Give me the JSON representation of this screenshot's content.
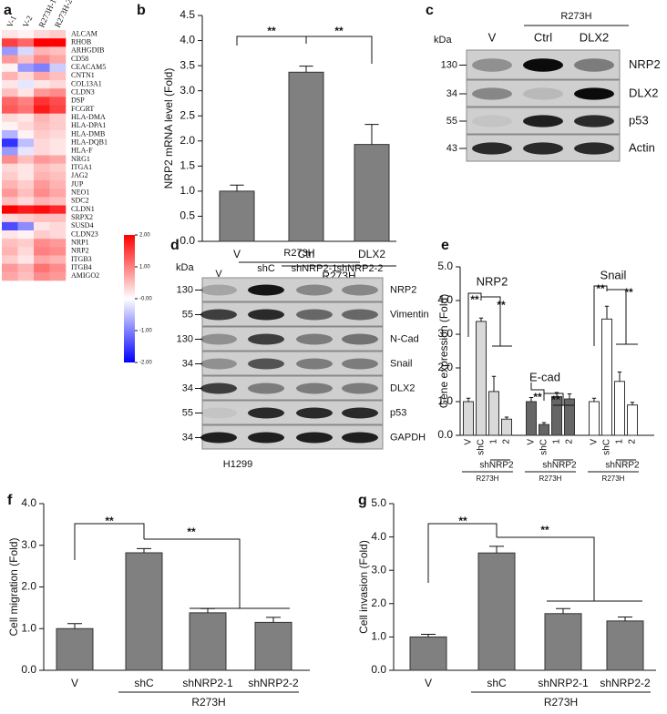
{
  "panel_labels": [
    "a",
    "b",
    "c",
    "d",
    "e",
    "f",
    "g"
  ],
  "chart_data": [
    {
      "type": "heatmap",
      "columns": [
        "V-1",
        "V-2",
        "R273H-1",
        "R273H-2"
      ],
      "rows": [
        "ALCAM",
        "RHOB",
        "ARHGDIB",
        "CD58",
        "CEACAM5",
        "CNTN1",
        "COL13A1",
        "CLDN3",
        "DSP",
        "FCGRT",
        "HLA-DMA",
        "HLA-DPA1",
        "HLA-DMB",
        "HLA-DQB1",
        "HLA-F",
        "NRG1",
        "ITGA1",
        "JAG2",
        "JUP",
        "NEO1",
        "SDC2",
        "CLDN1",
        "SRPX2",
        "SUSD4",
        "CLDN23",
        "NRP1",
        "NRP2",
        "ITGB3",
        "ITGB4",
        "AMIGO2"
      ],
      "values": [
        [
          0.2,
          0.1,
          0.3,
          0.4
        ],
        [
          1.5,
          1.2,
          2,
          2
        ],
        [
          -0.8,
          -0.3,
          0.6,
          0.5
        ],
        [
          0.8,
          0.5,
          0.9,
          0.7
        ],
        [
          0.1,
          -0.8,
          -1,
          -0.4
        ],
        [
          0.6,
          0.3,
          0.7,
          0.5
        ],
        [
          0.2,
          -0.2,
          0.2,
          0.3
        ],
        [
          0.5,
          0.2,
          0.8,
          0.9
        ],
        [
          1.2,
          1,
          1.6,
          1.4
        ],
        [
          1.3,
          1.1,
          1.8,
          1.5
        ],
        [
          0.3,
          0.2,
          0.6,
          0.4
        ],
        [
          0.1,
          0.3,
          0.5,
          0.4
        ],
        [
          -0.6,
          0.1,
          0.4,
          0.3
        ],
        [
          -1.6,
          -0.5,
          0.3,
          0.2
        ],
        [
          -0.8,
          -0.2,
          0.3,
          0.2
        ],
        [
          0.9,
          0.5,
          0.8,
          0.7
        ],
        [
          0.3,
          0.2,
          0.5,
          0.4
        ],
        [
          0.4,
          0.2,
          0.6,
          0.5
        ],
        [
          0.6,
          0.4,
          0.8,
          0.6
        ],
        [
          0.8,
          0.5,
          0.9,
          0.7
        ],
        [
          0.5,
          0.3,
          0.6,
          0.5
        ],
        [
          2,
          1.8,
          1.9,
          1.7
        ],
        [
          0.3,
          0.4,
          0.5,
          0.5
        ],
        [
          -1.4,
          -0.9,
          0.2,
          0.3
        ],
        [
          0.2,
          0.1,
          0.4,
          0.3
        ],
        [
          0.5,
          0.4,
          0.9,
          0.8
        ],
        [
          0.6,
          0.3,
          1,
          0.9
        ],
        [
          0.4,
          0.2,
          0.7,
          0.6
        ],
        [
          0.8,
          0.6,
          1.1,
          0.9
        ],
        [
          0.7,
          0.5,
          0.9,
          0.8
        ]
      ],
      "zlim": [
        -2,
        2
      ],
      "colorbar_ticks": [
        {
          "value": 2,
          "label": "2.00"
        },
        {
          "value": 1,
          "label": "1.00"
        },
        {
          "value": 0,
          "label": "-0.00"
        },
        {
          "value": -1,
          "label": "-1.00"
        },
        {
          "value": -2,
          "label": "-2.00"
        }
      ]
    },
    {
      "type": "bar",
      "ylabel": "NRP2 mRNA level (Fold)",
      "categories": [
        "V",
        "Ctrl",
        "DLX2"
      ],
      "values": [
        1.0,
        3.37,
        1.93
      ],
      "errors": [
        0.12,
        0.12,
        0.4
      ],
      "color": "#808080",
      "group_label": "R273H",
      "annotations": [
        "**",
        "**"
      ],
      "ylim": [
        0,
        4.5
      ],
      "yticks": [
        {
          "value": 0,
          "label": "0.0"
        },
        {
          "value": 0.5,
          "label": "0.5"
        },
        {
          "value": 1,
          "label": "1.0"
        },
        {
          "value": 1.5,
          "label": "1.5"
        },
        {
          "value": 2,
          "label": "2.0"
        },
        {
          "value": 2.5,
          "label": "2.5"
        },
        {
          "value": 3,
          "label": "3.0"
        },
        {
          "value": 3.5,
          "label": "3.5"
        },
        {
          "value": 4,
          "label": "4.0"
        },
        {
          "value": 4.5,
          "label": "4.5"
        }
      ]
    },
    {
      "type": "grouped_bar",
      "ylabel": "Gene expression (Fold)",
      "ylim": [
        0,
        5
      ],
      "yticks": [
        {
          "value": 0,
          "label": "0.0"
        },
        {
          "value": 1,
          "label": "1.0"
        },
        {
          "value": 2,
          "label": "2.0"
        },
        {
          "value": 3,
          "label": "3.0"
        },
        {
          "value": 4,
          "label": "4.0"
        },
        {
          "value": 5,
          "label": "5.0"
        }
      ],
      "groups": [
        {
          "name": "NRP2",
          "color": "#d9d9d9",
          "categories": [
            "V",
            "shC",
            "1",
            "2"
          ],
          "values": [
            1.0,
            3.38,
            1.3,
            0.48
          ],
          "errors": [
            0.1,
            0.1,
            0.45,
            0.06
          ],
          "sub_label": "shNRP2",
          "group_label": "R273H",
          "annotations": [
            "**",
            "**"
          ]
        },
        {
          "name": "E-cad",
          "color": "#666666",
          "categories": [
            "V",
            "shC",
            "1",
            "2"
          ],
          "values": [
            1.0,
            0.32,
            1.15,
            1.08
          ],
          "errors": [
            0.12,
            0.06,
            0.12,
            0.15
          ],
          "sub_label": "shNRP2",
          "group_label": "R273H",
          "annotations": [
            "**",
            "**"
          ]
        },
        {
          "name": "Snail",
          "color": "#ffffff",
          "categories": [
            "V",
            "shC",
            "1",
            "2"
          ],
          "values": [
            1.0,
            3.45,
            1.6,
            0.9
          ],
          "errors": [
            0.1,
            0.38,
            0.28,
            0.08
          ],
          "sub_label": "shNRP2",
          "group_label": "R273H",
          "annotations": [
            "**",
            "**"
          ]
        }
      ]
    },
    {
      "type": "bar",
      "ylabel": "Cell migration (Fold)",
      "categories": [
        "V",
        "shC",
        "shNRP2-1",
        "shNRP2-2"
      ],
      "values": [
        1.0,
        2.82,
        1.38,
        1.15
      ],
      "errors": [
        0.12,
        0.1,
        0.1,
        0.12
      ],
      "color": "#808080",
      "group_label": "R273H",
      "annotations": [
        "**",
        "**"
      ],
      "ylim": [
        0,
        4
      ],
      "yticks": [
        {
          "value": 0,
          "label": "0.0"
        },
        {
          "value": 1,
          "label": "1.0"
        },
        {
          "value": 2,
          "label": "2.0"
        },
        {
          "value": 3,
          "label": "3.0"
        },
        {
          "value": 4,
          "label": "4.0"
        }
      ]
    },
    {
      "type": "bar",
      "ylabel": "Cell invasion (Fold)",
      "categories": [
        "V",
        "shC",
        "shNRP2-1",
        "shNRP2-2"
      ],
      "values": [
        1.0,
        3.52,
        1.7,
        1.48
      ],
      "errors": [
        0.08,
        0.2,
        0.15,
        0.12
      ],
      "color": "#808080",
      "group_label": "R273H",
      "annotations": [
        "**",
        "**"
      ],
      "ylim": [
        0,
        5
      ],
      "yticks": [
        {
          "value": 0,
          "label": "0.0"
        },
        {
          "value": 1,
          "label": "1.0"
        },
        {
          "value": 2,
          "label": "2.0"
        },
        {
          "value": 3,
          "label": "3.0"
        },
        {
          "value": 4,
          "label": "4.0"
        },
        {
          "value": 5,
          "label": "5.0"
        }
      ]
    }
  ],
  "blots": [
    {
      "unit": "kDa",
      "lanes": [
        "V",
        "Ctrl",
        "DLX2"
      ],
      "group_label": "R273H",
      "markers": [
        "130",
        "34",
        "55",
        "43"
      ],
      "proteins": [
        "NRP2",
        "DLX2",
        "p53",
        "Actin"
      ]
    },
    {
      "unit": "kDa",
      "lanes": [
        "V",
        "shC",
        "shNRP2-1",
        "shNRP2-2"
      ],
      "group_label": "R273H",
      "markers": [
        "130",
        "55",
        "130",
        "34",
        "34",
        "55",
        "34"
      ],
      "proteins": [
        "NRP2",
        "Vimentin",
        "N-Cad",
        "Snail",
        "DLX2",
        "p53",
        "GAPDH"
      ],
      "cell_line": "H1299"
    }
  ]
}
